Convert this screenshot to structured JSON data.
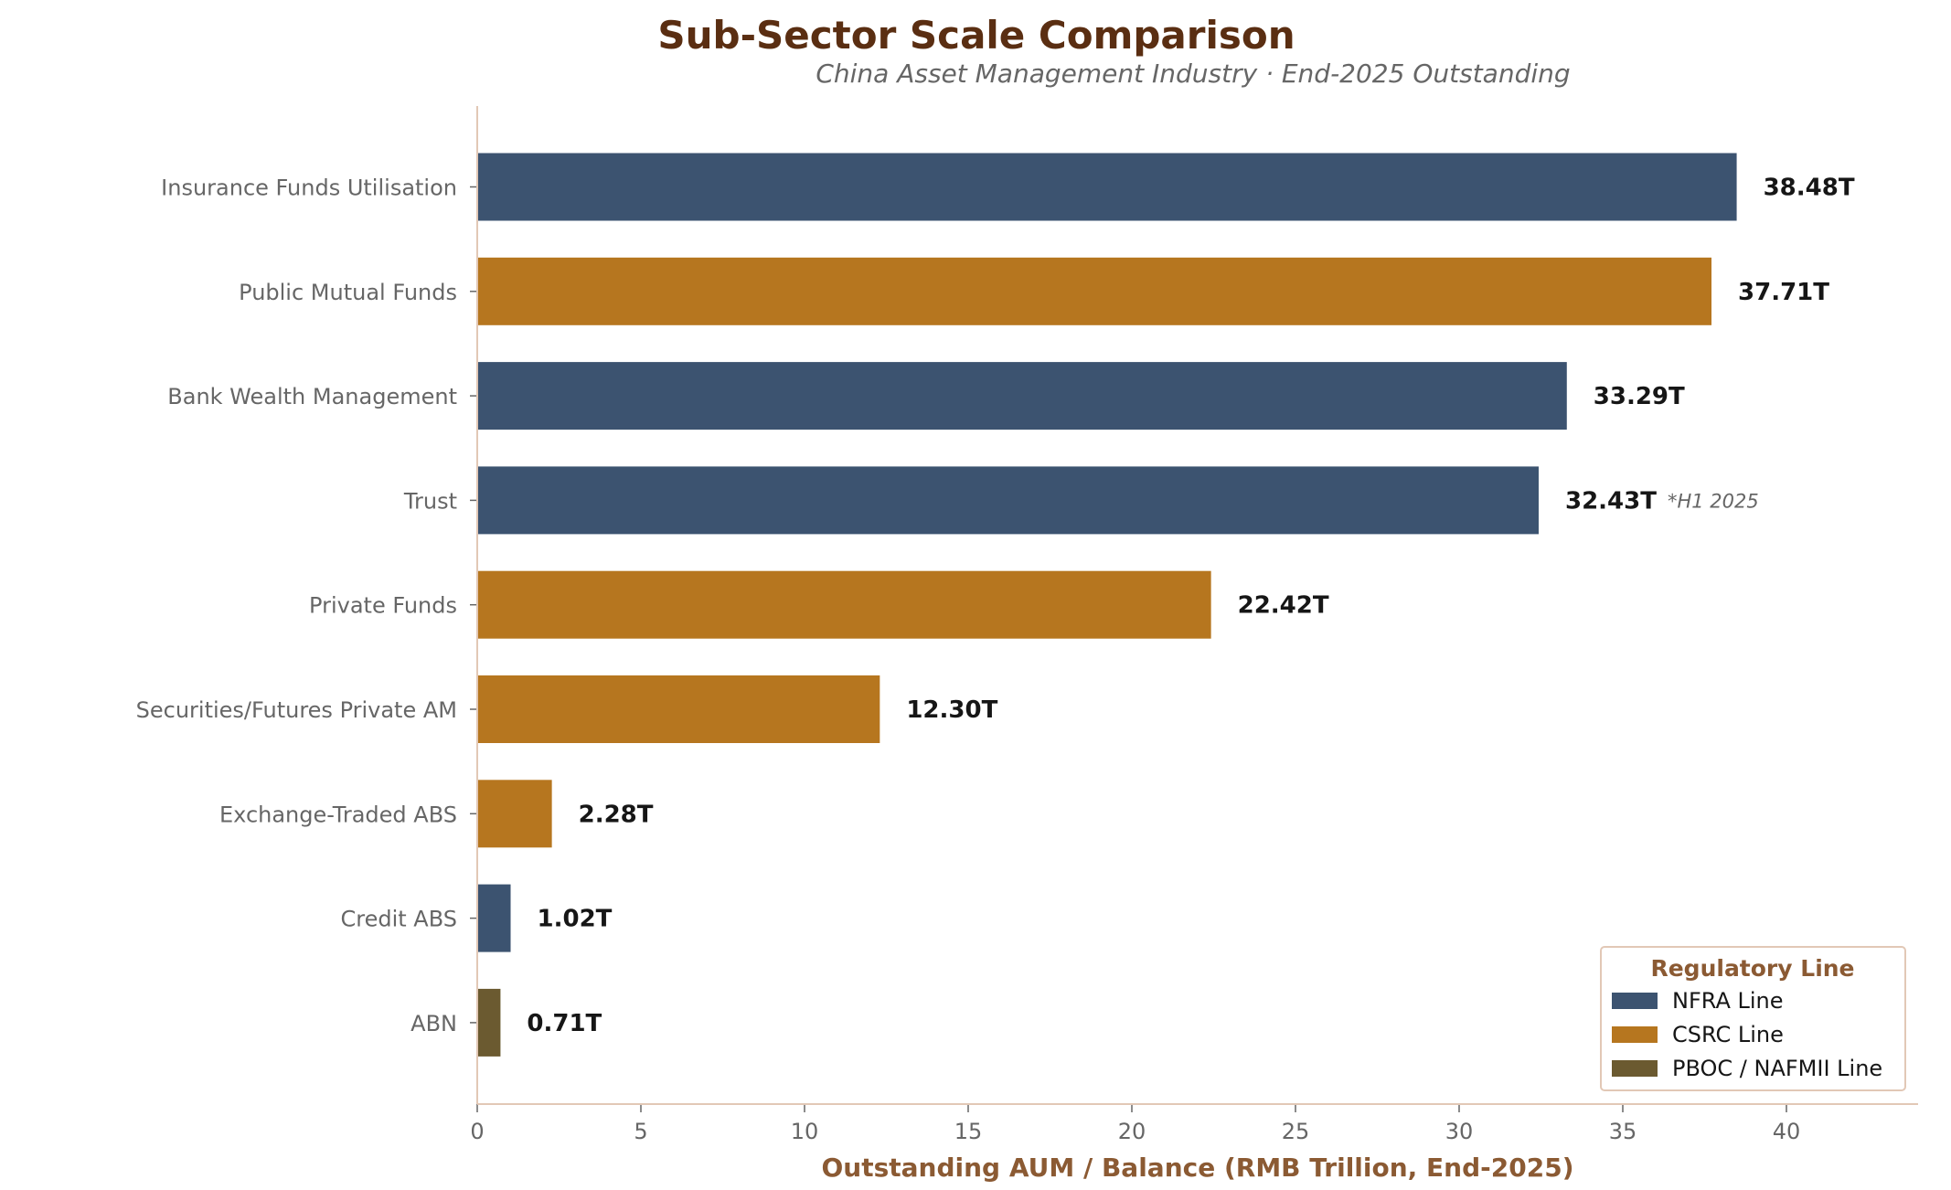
{
  "chart_data": {
    "type": "bar",
    "orientation": "horizontal",
    "title": "Sub-Sector Scale Comparison",
    "subtitle": "China Asset Management Industry  ·  End-2025 Outstanding",
    "xlabel": "Outstanding AUM / Balance (RMB Trillion, End-2025)",
    "ylabel": "",
    "xlim": [
      0,
      42
    ],
    "xticks": [
      0,
      5,
      10,
      15,
      20,
      25,
      30,
      35,
      40
    ],
    "grid": false,
    "legend": {
      "title": "Regulatory Line",
      "position": "bottom-right",
      "items": [
        {
          "name": "NFRA Line",
          "color": "#3c5370"
        },
        {
          "name": "CSRC Line",
          "color": "#b6761f"
        },
        {
          "name": "PBOC / NAFMII Line",
          "color": "#6b5a30"
        }
      ]
    },
    "bars": [
      {
        "category": "Insurance Funds Utilisation",
        "value": 38.48,
        "label": "38.48T",
        "group": "NFRA Line",
        "color": "#3c5370"
      },
      {
        "category": "Public Mutual Funds",
        "value": 37.71,
        "label": "37.71T",
        "group": "CSRC Line",
        "color": "#b6761f"
      },
      {
        "category": "Bank Wealth Management",
        "value": 33.29,
        "label": "33.29T",
        "group": "NFRA Line",
        "color": "#3c5370"
      },
      {
        "category": "Trust",
        "value": 32.43,
        "label": "32.43T",
        "group": "NFRA Line",
        "color": "#3c5370",
        "note": "*H1 2025"
      },
      {
        "category": "Private Funds",
        "value": 22.42,
        "label": "22.42T",
        "group": "CSRC Line",
        "color": "#b6761f"
      },
      {
        "category": "Securities/Futures Private AM",
        "value": 12.3,
        "label": "12.30T",
        "group": "CSRC Line",
        "color": "#b6761f"
      },
      {
        "category": "Exchange-Traded ABS",
        "value": 2.28,
        "label": "2.28T",
        "group": "CSRC Line",
        "color": "#b6761f"
      },
      {
        "category": "Credit ABS",
        "value": 1.02,
        "label": "1.02T",
        "group": "NFRA Line",
        "color": "#3c5370"
      },
      {
        "category": "ABN",
        "value": 0.71,
        "label": "0.71T",
        "group": "PBOC / NAFMII Line",
        "color": "#6b5a30"
      }
    ]
  },
  "colors": {
    "title": "#5a2e12",
    "subtitle": "#666666",
    "axis_label": "#8b5a33",
    "tick_label": "#666666",
    "spine": "#e2c8b6",
    "data_label": "#161616",
    "annotation": "#666666",
    "legend_title": "#8b5a33",
    "legend_border": "#e2c8b6",
    "legend_text": "#161616"
  }
}
